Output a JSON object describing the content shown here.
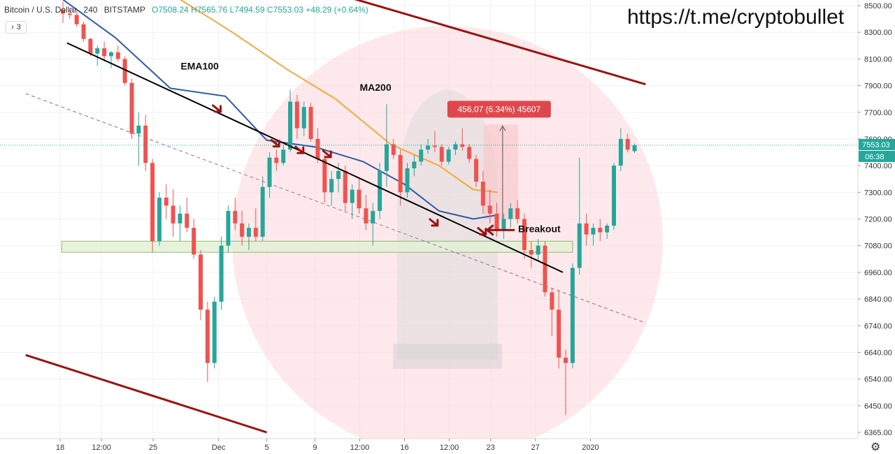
{
  "header": {
    "symbol": "Bitcoin / U.S. Dollar",
    "interval": "240",
    "exchange": "BITSTAMP",
    "ohlc": {
      "o": "O7508.24",
      "h": "H7565.76",
      "l": "L7494.59",
      "c": "C7553.03",
      "change": "+48.29 (+0.64%)"
    },
    "collapse_label": "3"
  },
  "watermark": "https://t.me/cryptobullet",
  "colors": {
    "up": "#26a69a",
    "down": "#ef5350",
    "ema": "#2e5aa8",
    "ma": "#f4a83a",
    "channel": "#9c1111",
    "trend": "#000000",
    "support_fill": "#e4f1d7",
    "support_stroke": "#7fb062",
    "measure_fill": "#f6c9cc",
    "label_bg": "#e0474c",
    "arrow": "#9c1111",
    "circle": "#fbd7da"
  },
  "chart_data": {
    "type": "candlestick",
    "price_axis": {
      "ticks": [
        8500,
        8300,
        8100,
        7900,
        7700,
        7600,
        7400,
        7300,
        7200,
        7080,
        6960,
        6840,
        6740,
        6640,
        6540,
        6450,
        6365
      ],
      "labels": [
        "8500.00",
        "8300.00",
        "8100.00",
        "7900.00",
        "7700.00",
        "7600.00",
        "7400.00",
        "7300.00",
        "7200.00",
        "7080.00",
        "6960.00",
        "6840.00",
        "6740.00",
        "6640.00",
        "6540.00",
        "6450.00",
        "6365.00"
      ],
      "last_price": "7553.03",
      "countdown": "06:38"
    },
    "time_axis": {
      "labels": [
        "18",
        "12:00",
        "25",
        "Dec",
        "5",
        "9",
        "12:00",
        "16",
        "12:00",
        "23",
        "27",
        "2020"
      ],
      "positions": [
        0,
        6,
        13.5,
        23,
        30,
        37,
        43.5,
        50,
        56.5,
        62.5,
        69,
        77
      ]
    },
    "candles": [
      [
        8470,
        8530,
        8370,
        8440
      ],
      [
        8440,
        8480,
        8400,
        8430
      ],
      [
        8430,
        8470,
        8340,
        8360
      ],
      [
        8360,
        8380,
        8230,
        8250
      ],
      [
        8250,
        8260,
        8120,
        8140
      ],
      [
        8140,
        8200,
        8050,
        8180
      ],
      [
        8180,
        8230,
        8080,
        8120
      ],
      [
        8120,
        8160,
        8030,
        8150
      ],
      [
        8150,
        8200,
        8080,
        8100
      ],
      [
        8100,
        8120,
        7900,
        7920
      ],
      [
        7920,
        7950,
        7600,
        7620
      ],
      [
        7620,
        7700,
        7400,
        7650
      ],
      [
        7650,
        7690,
        7380,
        7420
      ],
      [
        7420,
        7450,
        7050,
        7100
      ],
      [
        7100,
        7300,
        7080,
        7280
      ],
      [
        7280,
        7330,
        7200,
        7250
      ],
      [
        7250,
        7310,
        7120,
        7180
      ],
      [
        7180,
        7250,
        7100,
        7220
      ],
      [
        7220,
        7280,
        7140,
        7160
      ],
      [
        7160,
        7200,
        7020,
        7040
      ],
      [
        7040,
        7060,
        6760,
        6800
      ],
      [
        6800,
        6830,
        6530,
        6600
      ],
      [
        6600,
        6850,
        6580,
        6830
      ],
      [
        6830,
        7120,
        6800,
        7080
      ],
      [
        7080,
        7250,
        7050,
        7230
      ],
      [
        7230,
        7280,
        7150,
        7180
      ],
      [
        7180,
        7230,
        7080,
        7120
      ],
      [
        7120,
        7180,
        7060,
        7160
      ],
      [
        7160,
        7240,
        7100,
        7120
      ],
      [
        7120,
        7360,
        7100,
        7320
      ],
      [
        7320,
        7500,
        7280,
        7460
      ],
      [
        7460,
        7520,
        7380,
        7420
      ],
      [
        7420,
        7560,
        7400,
        7520
      ],
      [
        7520,
        7870,
        7500,
        7780
      ],
      [
        7780,
        7830,
        7600,
        7640
      ],
      [
        7640,
        7780,
        7610,
        7740
      ],
      [
        7740,
        7770,
        7580,
        7600
      ],
      [
        7600,
        7640,
        7420,
        7450
      ],
      [
        7450,
        7480,
        7260,
        7300
      ],
      [
        7300,
        7380,
        7250,
        7350
      ],
      [
        7350,
        7420,
        7300,
        7380
      ],
      [
        7380,
        7400,
        7230,
        7260
      ],
      [
        7260,
        7330,
        7200,
        7310
      ],
      [
        7310,
        7350,
        7220,
        7240
      ],
      [
        7240,
        7290,
        7150,
        7180
      ],
      [
        7180,
        7260,
        7080,
        7230
      ],
      [
        7230,
        7420,
        7200,
        7380
      ],
      [
        7380,
        7760,
        7320,
        7560
      ],
      [
        7560,
        7600,
        7450,
        7480
      ],
      [
        7480,
        7520,
        7250,
        7300
      ],
      [
        7300,
        7420,
        7280,
        7390
      ],
      [
        7390,
        7480,
        7360,
        7430
      ],
      [
        7430,
        7560,
        7400,
        7520
      ],
      [
        7520,
        7600,
        7490,
        7550
      ],
      [
        7550,
        7630,
        7500,
        7540
      ],
      [
        7540,
        7560,
        7400,
        7430
      ],
      [
        7430,
        7540,
        7410,
        7520
      ],
      [
        7520,
        7580,
        7480,
        7560
      ],
      [
        7560,
        7640,
        7510,
        7540
      ],
      [
        7540,
        7560,
        7420,
        7450
      ],
      [
        7450,
        7480,
        7320,
        7340
      ],
      [
        7340,
        7380,
        7220,
        7250
      ],
      [
        7250,
        7310,
        7180,
        7220
      ],
      [
        7220,
        7260,
        7120,
        7150
      ],
      [
        7150,
        7220,
        7110,
        7200
      ],
      [
        7200,
        7260,
        7160,
        7240
      ],
      [
        7240,
        7270,
        7180,
        7200
      ],
      [
        7200,
        7220,
        7020,
        7060
      ],
      [
        7060,
        7100,
        6980,
        7040
      ],
      [
        7040,
        7110,
        7010,
        7080
      ],
      [
        7080,
        7100,
        6850,
        6870
      ],
      [
        6870,
        6890,
        6700,
        6800
      ],
      [
        6800,
        6880,
        6580,
        6620
      ],
      [
        6620,
        6650,
        6420,
        6600
      ],
      [
        6600,
        7000,
        6580,
        6980
      ],
      [
        6980,
        7460,
        6950,
        7180
      ],
      [
        7180,
        7220,
        7080,
        7130
      ],
      [
        7130,
        7180,
        7080,
        7160
      ],
      [
        7160,
        7200,
        7100,
        7140
      ],
      [
        7140,
        7180,
        7110,
        7170
      ],
      [
        7170,
        7420,
        7150,
        7400
      ],
      [
        7400,
        7640,
        7380,
        7600
      ],
      [
        7600,
        7620,
        7500,
        7520
      ],
      [
        7508,
        7566,
        7495,
        7553
      ]
    ],
    "ema100": [
      [
        0,
        8560
      ],
      [
        8,
        8260
      ],
      [
        16,
        7880
      ],
      [
        24,
        7820
      ],
      [
        30,
        7590
      ],
      [
        37,
        7540
      ],
      [
        44,
        7430
      ],
      [
        50,
        7330
      ],
      [
        55,
        7230
      ],
      [
        60,
        7200
      ],
      [
        63.5,
        7215
      ]
    ],
    "ma200": [
      [
        17,
        8560
      ],
      [
        25,
        8300
      ],
      [
        33,
        8020
      ],
      [
        40,
        7800
      ],
      [
        48,
        7560
      ],
      [
        55,
        7400
      ],
      [
        60,
        7310
      ],
      [
        63.5,
        7300
      ]
    ],
    "trendline": [
      [
        1,
        8220
      ],
      [
        73,
        6960
      ]
    ],
    "dashed_line": [
      [
        -5,
        7840
      ],
      [
        85,
        6750
      ]
    ],
    "channel_upper": [
      [
        42,
        8560
      ],
      [
        85,
        7910
      ]
    ],
    "channel_lower": [
      [
        -5,
        6630
      ],
      [
        30,
        6365
      ]
    ],
    "support_zone": {
      "x_from": -1,
      "x_to": 74,
      "price_low": 7050,
      "price_high": 7100
    },
    "measure": {
      "x_from": 61.5,
      "x_to": 66.5,
      "price_low": 7198,
      "price_high": 7654,
      "label": "456.07 (6.34%) 45607"
    },
    "annotations": [
      {
        "text": "EMA100",
        "x": 17.5,
        "price": 8020
      },
      {
        "text": "MA200",
        "x": 43.5,
        "price": 7860
      },
      {
        "text": "Breakout",
        "x": 66.5,
        "price": 7140
      }
    ],
    "arrows": [
      [
        23,
        7720
      ],
      [
        31.5,
        7560
      ],
      [
        35,
        7510
      ],
      [
        39,
        7480
      ],
      [
        54.5,
        7180
      ],
      [
        61.5,
        7140
      ]
    ],
    "breakout_arrow": {
      "x_from": 66,
      "x_to": 62,
      "price": 7150
    },
    "last_price_value": 7553.03
  }
}
